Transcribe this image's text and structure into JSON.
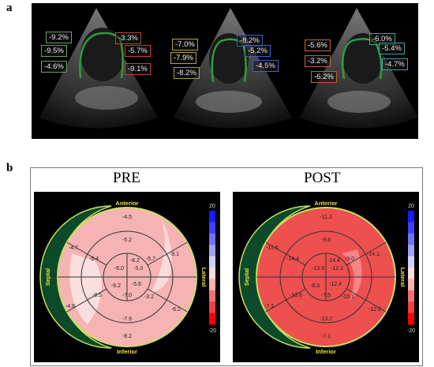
{
  "panel_a": {
    "letter": "a",
    "views": [
      {
        "labels": [
          {
            "text": "-9.2%",
            "color": "#6aa060"
          },
          {
            "text": "-9.5%",
            "color": "#6aa060"
          },
          {
            "text": "-4.6%",
            "color": "#6aa060"
          },
          {
            "text": "-3.3%",
            "color": "#c04040"
          },
          {
            "text": "-5.7%",
            "color": "#c04040"
          },
          {
            "text": "-9.1%",
            "color": "#c04040"
          }
        ]
      },
      {
        "labels": [
          {
            "text": "-7.0%",
            "color": "#b0a040"
          },
          {
            "text": "-7.9%",
            "color": "#b0a040"
          },
          {
            "text": "-8.2%",
            "color": "#b0a040"
          },
          {
            "text": "-8.2%",
            "color": "#4060c0"
          },
          {
            "text": "-5.2%",
            "color": "#4060c0"
          },
          {
            "text": "-4.5%",
            "color": "#4060c0"
          }
        ]
      },
      {
        "labels": [
          {
            "text": "-5.6%",
            "color": "#c06040"
          },
          {
            "text": "-3.2%",
            "color": "#c06040"
          },
          {
            "text": "-6.2%",
            "color": "#c06040"
          },
          {
            "text": "-6.0%",
            "color": "#40a0a0"
          },
          {
            "text": "-5.4%",
            "color": "#40a0a0"
          },
          {
            "text": "-4.7%",
            "color": "#40a0a0"
          }
        ]
      }
    ]
  },
  "panel_b": {
    "letter": "b",
    "plots": [
      {
        "title": "PRE",
        "wall_labels": {
          "top": "Anterior",
          "bottom": "Inferior",
          "left": "Septal",
          "right": "Lateral"
        },
        "scale": {
          "max": "20",
          "min": "-20"
        },
        "values": [
          "-4.5",
          "-5.2",
          "-4.7",
          "-9.1",
          "-5.4",
          "-5.7",
          "-6.0",
          "-8.2",
          "-3.3",
          "-9.2",
          "-5.6",
          "-7.0",
          "-9.5",
          "-3.2",
          "-4.6",
          "-6.2",
          "-7.9",
          "-8.2"
        ]
      },
      {
        "title": "POST",
        "wall_labels": {
          "top": "Anterior",
          "bottom": "Inferior",
          "left": "Septal",
          "right": "Lateral"
        },
        "scale": {
          "max": "20",
          "min": "-20"
        },
        "values": [
          "-11.3",
          "-9.8",
          "-11.6",
          "-14.1",
          "-14.4",
          "-9.0",
          "-13.9",
          "-14.4",
          "-12.2",
          "-8.3",
          "-12.4",
          "-7.5",
          "-13.6",
          "-10.1",
          "-7.1",
          "-12.0",
          "-13.2",
          "-7.1"
        ]
      }
    ]
  }
}
